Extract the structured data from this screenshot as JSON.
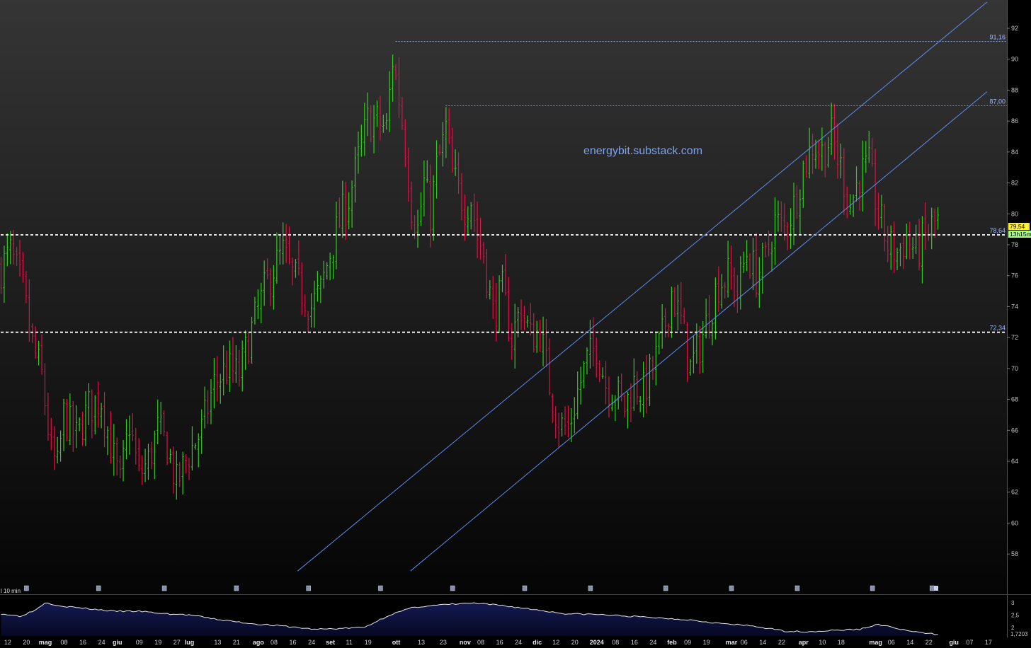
{
  "watermark": "energybit.substack.com",
  "timeframe_label": "l 10 min",
  "current_price_label": "79,54",
  "countdown_label": "13h15m",
  "colors": {
    "up": "#33cc22",
    "down": "#dd1144",
    "trendline": "#5b8def",
    "level": "#ffffff",
    "accent_price": "#ffee33",
    "countdown_bg": "#aaff88"
  },
  "chart_data": {
    "type": "bar",
    "ylim": [
      56.5,
      93.5
    ],
    "y_ticks": [
      "58",
      "60",
      "62",
      "64",
      "66",
      "68",
      "70",
      "72",
      "74",
      "76",
      "78",
      "80",
      "82",
      "84",
      "86",
      "88",
      "90",
      "92"
    ],
    "x_ticks": [
      {
        "label": "12",
        "i": 2
      },
      {
        "label": "20",
        "i": 8
      },
      {
        "label": "mag",
        "i": 14,
        "major": true
      },
      {
        "label": "08",
        "i": 20
      },
      {
        "label": "16",
        "i": 26
      },
      {
        "label": "24",
        "i": 32
      },
      {
        "label": "giu",
        "i": 37,
        "major": true
      },
      {
        "label": "09",
        "i": 44
      },
      {
        "label": "19",
        "i": 50
      },
      {
        "label": "27",
        "i": 56
      },
      {
        "label": "lug",
        "i": 60,
        "major": true
      },
      {
        "label": "13",
        "i": 69
      },
      {
        "label": "21",
        "i": 75
      },
      {
        "label": "ago",
        "i": 82,
        "major": true
      },
      {
        "label": "08",
        "i": 87
      },
      {
        "label": "16",
        "i": 93
      },
      {
        "label": "24",
        "i": 99
      },
      {
        "label": "set",
        "i": 105,
        "major": true
      },
      {
        "label": "11",
        "i": 111
      },
      {
        "label": "19",
        "i": 117
      },
      {
        "label": "ott",
        "i": 126,
        "major": true
      },
      {
        "label": "13",
        "i": 134
      },
      {
        "label": "23",
        "i": 141
      },
      {
        "label": "nov",
        "i": 148,
        "major": true
      },
      {
        "label": "08",
        "i": 153
      },
      {
        "label": "16",
        "i": 159
      },
      {
        "label": "24",
        "i": 165
      },
      {
        "label": "dic",
        "i": 171,
        "major": true
      },
      {
        "label": "12",
        "i": 177
      },
      {
        "label": "20",
        "i": 183
      },
      {
        "label": "2024",
        "i": 190,
        "major": true
      },
      {
        "label": "08",
        "i": 196
      },
      {
        "label": "16",
        "i": 202
      },
      {
        "label": "24",
        "i": 208
      },
      {
        "label": "feb",
        "i": 214,
        "major": true
      },
      {
        "label": "09",
        "i": 219
      },
      {
        "label": "19",
        "i": 225
      },
      {
        "label": "mar",
        "i": 233,
        "major": true
      },
      {
        "label": "06",
        "i": 237
      },
      {
        "label": "14",
        "i": 243
      },
      {
        "label": "22",
        "i": 249
      },
      {
        "label": "apr",
        "i": 256,
        "major": true
      },
      {
        "label": "10",
        "i": 262
      },
      {
        "label": "18",
        "i": 268
      },
      {
        "label": "mag",
        "i": 279,
        "major": true
      },
      {
        "label": "06",
        "i": 284
      },
      {
        "label": "14",
        "i": 290
      },
      {
        "label": "22",
        "i": 296
      },
      {
        "label": "giu",
        "i": 304,
        "major": true
      },
      {
        "label": "07",
        "i": 309
      },
      {
        "label": "17",
        "i": 315
      }
    ],
    "levels": [
      {
        "label": "91,16",
        "value": 91.16,
        "start_i": 126,
        "style": "dotted"
      },
      {
        "label": "87,00",
        "value": 87.0,
        "start_i": 142,
        "style": "dotted"
      },
      {
        "label": "78,64",
        "value": 78.64,
        "start_i": 0,
        "style": "dashed"
      },
      {
        "label": "72,34",
        "value": 72.34,
        "start_i": 0,
        "style": "dashed"
      }
    ],
    "trendlines": [
      {
        "from": {
          "i": 95,
          "v": 56.9
        },
        "to": {
          "i": 315,
          "v": 93.7
        }
      },
      {
        "from": {
          "i": 131,
          "v": 56.9
        },
        "to": {
          "i": 315,
          "v": 87.9
        }
      }
    ],
    "anchors": [
      {
        "i": 0,
        "v": 76.5
      },
      {
        "i": 3,
        "v": 77.5
      },
      {
        "i": 7,
        "v": 75
      },
      {
        "i": 10,
        "v": 71.5
      },
      {
        "i": 13,
        "v": 69.5
      },
      {
        "i": 16,
        "v": 64.5
      },
      {
        "i": 18,
        "v": 63.5
      },
      {
        "i": 20,
        "v": 67
      },
      {
        "i": 24,
        "v": 65.5
      },
      {
        "i": 28,
        "v": 67.5
      },
      {
        "i": 32,
        "v": 68
      },
      {
        "i": 35,
        "v": 65
      },
      {
        "i": 38,
        "v": 62.5
      },
      {
        "i": 41,
        "v": 66.5
      },
      {
        "i": 44,
        "v": 63
      },
      {
        "i": 47,
        "v": 64
      },
      {
        "i": 50,
        "v": 66
      },
      {
        "i": 53,
        "v": 65
      },
      {
        "i": 56,
        "v": 62.5
      },
      {
        "i": 60,
        "v": 64.5
      },
      {
        "i": 64,
        "v": 66
      },
      {
        "i": 68,
        "v": 69
      },
      {
        "i": 72,
        "v": 70
      },
      {
        "i": 76,
        "v": 69.5
      },
      {
        "i": 80,
        "v": 72.5
      },
      {
        "i": 84,
        "v": 75
      },
      {
        "i": 87,
        "v": 76.5
      },
      {
        "i": 90,
        "v": 77.5
      },
      {
        "i": 93,
        "v": 76
      },
      {
        "i": 96,
        "v": 75
      },
      {
        "i": 99,
        "v": 74
      },
      {
        "i": 102,
        "v": 75
      },
      {
        "i": 105,
        "v": 77.5
      },
      {
        "i": 108,
        "v": 79.5
      },
      {
        "i": 111,
        "v": 81
      },
      {
        "i": 114,
        "v": 83.5
      },
      {
        "i": 117,
        "v": 86
      },
      {
        "i": 120,
        "v": 86
      },
      {
        "i": 123,
        "v": 85.5
      },
      {
        "i": 125,
        "v": 90
      },
      {
        "i": 127,
        "v": 87.5
      },
      {
        "i": 129,
        "v": 84.5
      },
      {
        "i": 131,
        "v": 80.5
      },
      {
        "i": 133,
        "v": 79
      },
      {
        "i": 135,
        "v": 82
      },
      {
        "i": 137,
        "v": 80
      },
      {
        "i": 139,
        "v": 83
      },
      {
        "i": 141,
        "v": 84.5
      },
      {
        "i": 142,
        "v": 85.5
      },
      {
        "i": 144,
        "v": 82.5
      },
      {
        "i": 146,
        "v": 81.5
      },
      {
        "i": 148,
        "v": 80.5
      },
      {
        "i": 150,
        "v": 81
      },
      {
        "i": 152,
        "v": 78.5
      },
      {
        "i": 154,
        "v": 77.5
      },
      {
        "i": 157,
        "v": 73.5
      },
      {
        "i": 160,
        "v": 75
      },
      {
        "i": 163,
        "v": 72
      },
      {
        "i": 166,
        "v": 74
      },
      {
        "i": 169,
        "v": 72
      },
      {
        "i": 172,
        "v": 72.5
      },
      {
        "i": 175,
        "v": 69
      },
      {
        "i": 178,
        "v": 66.5
      },
      {
        "i": 181,
        "v": 66
      },
      {
        "i": 184,
        "v": 68.5
      },
      {
        "i": 187,
        "v": 70.5
      },
      {
        "i": 190,
        "v": 71.5
      },
      {
        "i": 193,
        "v": 69
      },
      {
        "i": 196,
        "v": 68.5
      },
      {
        "i": 199,
        "v": 67.5
      },
      {
        "i": 202,
        "v": 69
      },
      {
        "i": 205,
        "v": 68.5
      },
      {
        "i": 208,
        "v": 70
      },
      {
        "i": 211,
        "v": 72
      },
      {
        "i": 214,
        "v": 75
      },
      {
        "i": 217,
        "v": 73
      },
      {
        "i": 220,
        "v": 70
      },
      {
        "i": 223,
        "v": 71.5
      },
      {
        "i": 226,
        "v": 73.5
      },
      {
        "i": 229,
        "v": 75.5
      },
      {
        "i": 232,
        "v": 76
      },
      {
        "i": 235,
        "v": 75
      },
      {
        "i": 238,
        "v": 77.5
      },
      {
        "i": 241,
        "v": 76
      },
      {
        "i": 244,
        "v": 77
      },
      {
        "i": 247,
        "v": 79.5
      },
      {
        "i": 250,
        "v": 79
      },
      {
        "i": 253,
        "v": 80.5
      },
      {
        "i": 256,
        "v": 83
      },
      {
        "i": 259,
        "v": 84.5
      },
      {
        "i": 262,
        "v": 84
      },
      {
        "i": 265,
        "v": 85
      },
      {
        "i": 268,
        "v": 83
      },
      {
        "i": 271,
        "v": 80.5
      },
      {
        "i": 274,
        "v": 82.5
      },
      {
        "i": 277,
        "v": 83
      },
      {
        "i": 280,
        "v": 80
      },
      {
        "i": 283,
        "v": 78
      },
      {
        "i": 286,
        "v": 77.5
      },
      {
        "i": 289,
        "v": 78.5
      },
      {
        "i": 292,
        "v": 77.5
      },
      {
        "i": 295,
        "v": 78.5
      },
      {
        "i": 297,
        "v": 79.2
      },
      {
        "i": 299,
        "v": 79.5
      }
    ],
    "indicator": {
      "ylim": [
        1.65,
        3.25
      ],
      "ticks": [
        "3",
        "2,5",
        "2"
      ],
      "current_label": "1,7203",
      "anchors": [
        {
          "i": 0,
          "v": 2.55
        },
        {
          "i": 6,
          "v": 2.45
        },
        {
          "i": 11,
          "v": 2.7
        },
        {
          "i": 14,
          "v": 3.0
        },
        {
          "i": 20,
          "v": 2.85
        },
        {
          "i": 28,
          "v": 2.75
        },
        {
          "i": 36,
          "v": 2.65
        },
        {
          "i": 44,
          "v": 2.65
        },
        {
          "i": 52,
          "v": 2.55
        },
        {
          "i": 60,
          "v": 2.5
        },
        {
          "i": 70,
          "v": 2.3
        },
        {
          "i": 80,
          "v": 2.15
        },
        {
          "i": 90,
          "v": 2.05
        },
        {
          "i": 100,
          "v": 1.92
        },
        {
          "i": 108,
          "v": 1.95
        },
        {
          "i": 116,
          "v": 2.0
        },
        {
          "i": 124,
          "v": 2.5
        },
        {
          "i": 132,
          "v": 2.82
        },
        {
          "i": 140,
          "v": 2.9
        },
        {
          "i": 150,
          "v": 2.98
        },
        {
          "i": 160,
          "v": 2.88
        },
        {
          "i": 170,
          "v": 2.72
        },
        {
          "i": 180,
          "v": 2.55
        },
        {
          "i": 190,
          "v": 2.52
        },
        {
          "i": 200,
          "v": 2.45
        },
        {
          "i": 210,
          "v": 2.38
        },
        {
          "i": 220,
          "v": 2.3
        },
        {
          "i": 230,
          "v": 2.15
        },
        {
          "i": 240,
          "v": 2.05
        },
        {
          "i": 250,
          "v": 1.85
        },
        {
          "i": 258,
          "v": 1.82
        },
        {
          "i": 266,
          "v": 1.88
        },
        {
          "i": 274,
          "v": 1.92
        },
        {
          "i": 280,
          "v": 2.12
        },
        {
          "i": 286,
          "v": 1.95
        },
        {
          "i": 292,
          "v": 1.8
        },
        {
          "i": 296,
          "v": 1.75
        },
        {
          "i": 299,
          "v": 1.72
        }
      ]
    }
  }
}
